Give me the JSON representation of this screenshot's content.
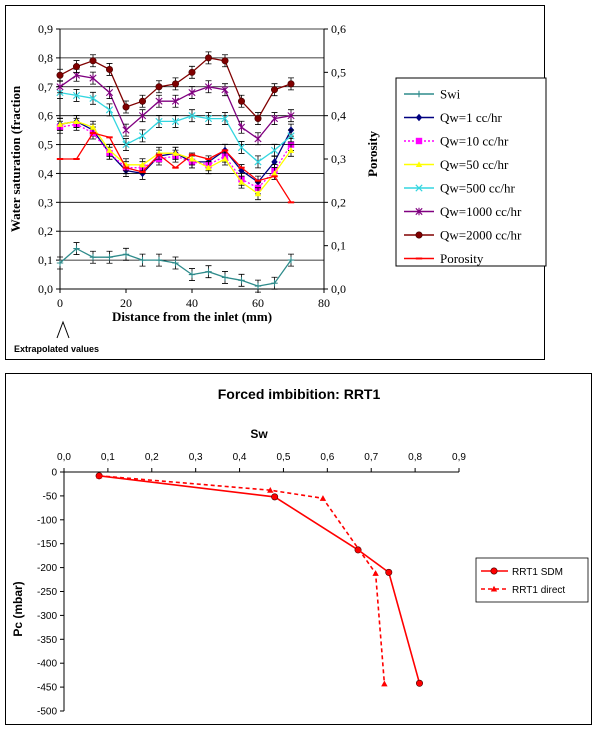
{
  "chart_data": [
    {
      "type": "line",
      "xlabel": "Distance from the inlet (mm)",
      "ylabel": "Water saturation (fraction",
      "y2label": "Porosity",
      "annotation": "Extrapolated values",
      "xlim": [
        0,
        80
      ],
      "xticks": [
        "0",
        "20",
        "40",
        "60",
        "80"
      ],
      "ylim": [
        0,
        0.9
      ],
      "yticks": [
        "0,0",
        "0,1",
        "0,2",
        "0,3",
        "0,4",
        "0,5",
        "0,6",
        "0,7",
        "0,8",
        "0,9"
      ],
      "y2lim": [
        0,
        0.6
      ],
      "y2ticks": [
        "0,0",
        "0,1",
        "0,2",
        "0,3",
        "0,4",
        "0,5",
        "0,6"
      ],
      "grid": "horizontal",
      "legend_position": "right",
      "series": [
        {
          "name": "Swi",
          "axis": "left",
          "color": "#2e8b8b",
          "marker": "plus",
          "dash": "",
          "x": [
            0,
            5,
            10,
            15,
            20,
            25,
            30,
            35,
            40,
            45,
            50,
            55,
            60,
            65,
            70
          ],
          "y": [
            0.09,
            0.14,
            0.11,
            0.11,
            0.12,
            0.1,
            0.1,
            0.09,
            0.05,
            0.06,
            0.04,
            0.03,
            0.01,
            0.02,
            0.1
          ]
        },
        {
          "name": "Qw=1 cc/hr",
          "axis": "left",
          "color": "#000080",
          "marker": "diamond",
          "dash": "",
          "x": [
            0,
            5,
            10,
            15,
            20,
            25,
            30,
            35,
            40,
            45,
            50,
            55,
            60,
            65,
            70
          ],
          "y": [
            0.57,
            0.58,
            0.55,
            0.47,
            0.41,
            0.4,
            0.46,
            0.47,
            0.44,
            0.44,
            0.48,
            0.41,
            0.37,
            0.44,
            0.55
          ]
        },
        {
          "name": "Qw=10 cc/hr",
          "axis": "left",
          "color": "#ff00ff",
          "marker": "square",
          "dash": "2,2",
          "x": [
            0,
            5,
            10,
            15,
            20,
            25,
            30,
            35,
            40,
            45,
            50,
            55,
            60,
            65,
            70
          ],
          "y": [
            0.56,
            0.57,
            0.54,
            0.47,
            0.42,
            0.42,
            0.45,
            0.46,
            0.44,
            0.43,
            0.46,
            0.38,
            0.35,
            0.41,
            0.5
          ]
        },
        {
          "name": "Qw=50 cc/hr",
          "axis": "left",
          "color": "#ffff00",
          "marker": "triangle",
          "dash": "",
          "x": [
            0,
            5,
            10,
            15,
            20,
            25,
            30,
            35,
            40,
            45,
            50,
            55,
            60,
            65,
            70
          ],
          "y": [
            0.57,
            0.58,
            0.56,
            0.48,
            0.43,
            0.43,
            0.47,
            0.47,
            0.45,
            0.42,
            0.45,
            0.37,
            0.33,
            0.4,
            0.48
          ]
        },
        {
          "name": "Qw=500 cc/hr",
          "axis": "left",
          "color": "#33d6e0",
          "marker": "x",
          "dash": "",
          "x": [
            0,
            5,
            10,
            15,
            20,
            25,
            30,
            35,
            40,
            45,
            50,
            55,
            60,
            65,
            70
          ],
          "y": [
            0.68,
            0.67,
            0.66,
            0.62,
            0.5,
            0.53,
            0.58,
            0.58,
            0.6,
            0.59,
            0.59,
            0.49,
            0.44,
            0.48,
            0.53
          ]
        },
        {
          "name": "Qw=1000 cc/hr",
          "axis": "left",
          "color": "#800080",
          "marker": "star",
          "dash": "",
          "x": [
            0,
            5,
            10,
            15,
            20,
            25,
            30,
            35,
            40,
            45,
            50,
            55,
            60,
            65,
            70
          ],
          "y": [
            0.7,
            0.74,
            0.73,
            0.68,
            0.55,
            0.6,
            0.65,
            0.65,
            0.68,
            0.7,
            0.69,
            0.56,
            0.52,
            0.59,
            0.6
          ]
        },
        {
          "name": "Qw=2000 cc/hr",
          "axis": "left",
          "color": "#800000",
          "marker": "circle",
          "dash": "",
          "x": [
            0,
            5,
            10,
            15,
            20,
            25,
            30,
            35,
            40,
            45,
            50,
            55,
            60,
            65,
            70
          ],
          "y": [
            0.74,
            0.77,
            0.79,
            0.76,
            0.63,
            0.65,
            0.7,
            0.71,
            0.75,
            0.8,
            0.79,
            0.65,
            0.59,
            0.69,
            0.71
          ]
        },
        {
          "name": "Porosity",
          "axis": "right",
          "color": "#ff0000",
          "marker": "dash",
          "dash": "",
          "x": [
            0,
            5,
            10,
            15,
            20,
            25,
            30,
            35,
            40,
            45,
            50,
            55,
            60,
            65,
            70
          ],
          "y": [
            0.3,
            0.3,
            0.36,
            0.35,
            0.28,
            0.27,
            0.31,
            0.28,
            0.31,
            0.3,
            0.32,
            0.28,
            0.25,
            0.26,
            0.2
          ]
        }
      ]
    },
    {
      "type": "line",
      "title": "Forced imbibition: RRT1",
      "xlabel": "Sw",
      "ylabel": "Pc (mbar)",
      "xlim": [
        0,
        0.9
      ],
      "xticks": [
        "0,0",
        "0,1",
        "0,2",
        "0,3",
        "0,4",
        "0,5",
        "0,6",
        "0,7",
        "0,8",
        "0,9"
      ],
      "ylim": [
        -500,
        0
      ],
      "yticks": [
        "0",
        "-50",
        "-100",
        "-150",
        "-200",
        "-250",
        "-300",
        "-350",
        "-400",
        "-450",
        "-500"
      ],
      "x_axis_position": "top",
      "legend_position": "right",
      "series": [
        {
          "name": "RRT1 SDM",
          "color": "#ff0000",
          "marker": "circle",
          "dash": "",
          "x": [
            0.08,
            0.48,
            0.67,
            0.74,
            0.81
          ],
          "y": [
            -8,
            -52,
            -163,
            -210,
            -442
          ]
        },
        {
          "name": "RRT1 direct",
          "color": "#ff0000",
          "marker": "triangle",
          "dash": "4,3",
          "x": [
            0.08,
            0.47,
            0.59,
            0.71,
            0.73
          ],
          "y": [
            -8,
            -38,
            -55,
            -212,
            -443
          ]
        }
      ]
    }
  ]
}
